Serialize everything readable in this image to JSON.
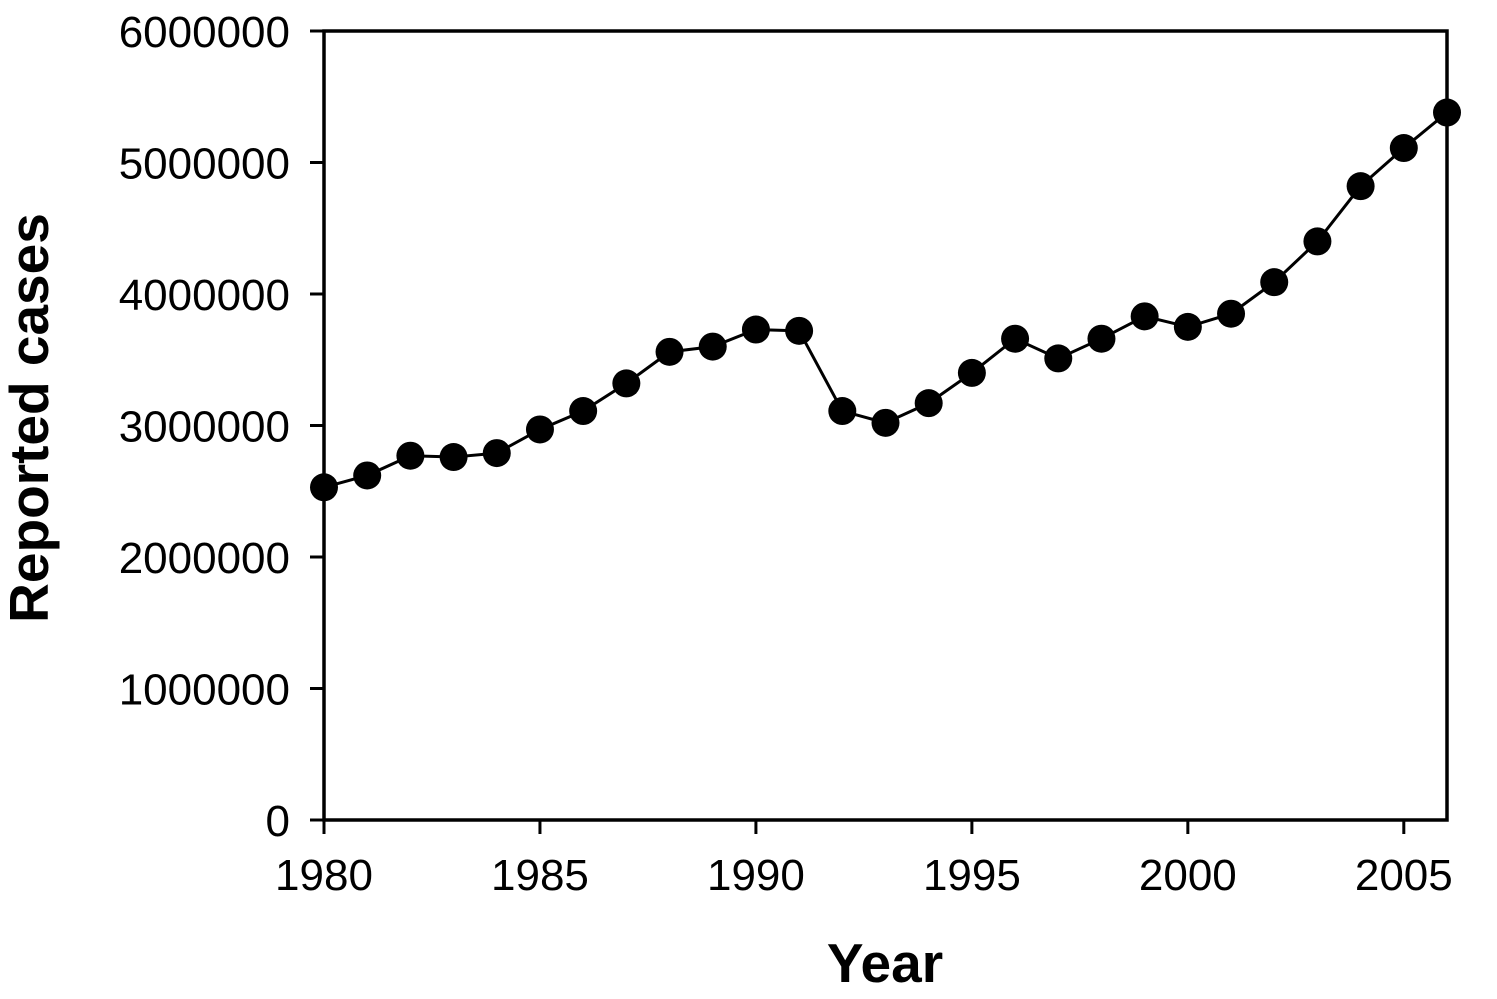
{
  "chart_data": {
    "type": "line",
    "title": "",
    "xlabel": "Year",
    "ylabel": "Reported cases",
    "x": [
      1980,
      1981,
      1982,
      1983,
      1984,
      1985,
      1986,
      1987,
      1988,
      1989,
      1990,
      1991,
      1992,
      1993,
      1994,
      1995,
      1996,
      1997,
      1998,
      1999,
      2000,
      2001,
      2002,
      2003,
      2004,
      2005,
      2006
    ],
    "values": [
      2530000,
      2620000,
      2770000,
      2760000,
      2790000,
      2970000,
      3110000,
      3320000,
      3560000,
      3600000,
      3730000,
      3720000,
      3110000,
      3020000,
      3170000,
      3400000,
      3660000,
      3510000,
      3660000,
      3830000,
      3750000,
      3850000,
      4090000,
      4400000,
      4820000,
      5110000,
      5380000
    ],
    "xlim": [
      1980,
      2006
    ],
    "ylim": [
      0,
      6000000
    ],
    "xticks": [
      1980,
      1985,
      1990,
      1995,
      2000,
      2005
    ],
    "yticks": [
      0,
      1000000,
      2000000,
      3000000,
      4000000,
      5000000,
      6000000
    ],
    "marker": "filled-circle",
    "line_color": "#000000",
    "marker_color": "#000000",
    "frame_color": "#000000",
    "background": "#ffffff",
    "grid": false,
    "legend_position": "none"
  }
}
